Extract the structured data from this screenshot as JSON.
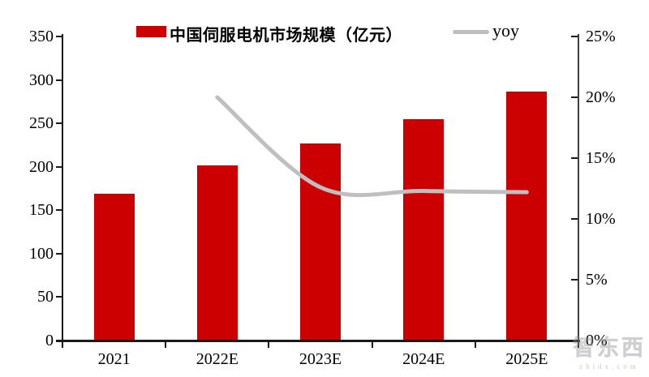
{
  "watermark": {
    "brand": "智东西",
    "domain": "zhidx.com"
  },
  "chart_data": {
    "type": "bar",
    "title": "",
    "categories": [
      "2021",
      "2022E",
      "2023E",
      "2024E",
      "2025E"
    ],
    "series": [
      {
        "name": "中国伺服电机市场规模（亿元）",
        "type": "bar",
        "axis": "left",
        "values": [
          169,
          202,
          227,
          255,
          287
        ],
        "color": "#CC0000"
      },
      {
        "name": "yoy",
        "type": "line",
        "axis": "right",
        "values": [
          null,
          20.0,
          12.6,
          12.3,
          12.2
        ],
        "color": "#BFBFBF"
      }
    ],
    "left_axis": {
      "min": 0,
      "max": 350,
      "ticks": [
        "0",
        "50",
        "100",
        "150",
        "200",
        "250",
        "300",
        "350"
      ]
    },
    "right_axis": {
      "min": 0,
      "max": 25,
      "ticks": [
        "0%",
        "5%",
        "10%",
        "15%",
        "20%",
        "25%"
      ]
    },
    "grid": false,
    "legend_position": "top"
  }
}
